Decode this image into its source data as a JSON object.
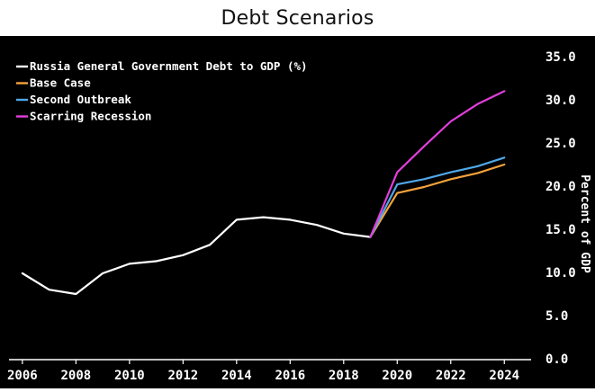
{
  "page": {
    "title": "Debt Scenarios"
  },
  "chart_data": {
    "type": "line",
    "title": "Debt Scenarios",
    "xlabel": "",
    "ylabel": "Percent of GDP",
    "xlim": [
      2005.5,
      2025
    ],
    "ylim": [
      0,
      35
    ],
    "xticks": [
      2006,
      2008,
      2010,
      2012,
      2014,
      2016,
      2018,
      2020,
      2022,
      2024
    ],
    "yticks": [
      0,
      5,
      10,
      15,
      20,
      25,
      30,
      35
    ],
    "ytick_labels": [
      "0.0",
      "5.0",
      "10.0",
      "15.0",
      "20.0",
      "25.0",
      "30.0",
      "35.0"
    ],
    "grid": false,
    "y_axis_side": "right",
    "legend_position": "top-left",
    "background": "#000000",
    "series": [
      {
        "name": "Russia General Government Debt to GDP (%)",
        "color": "#ffffff",
        "x": [
          2006,
          2007,
          2008,
          2009,
          2010,
          2011,
          2012,
          2013,
          2014,
          2015,
          2016,
          2017,
          2018,
          2019
        ],
        "y": [
          9.9,
          8.0,
          7.5,
          9.9,
          11.0,
          11.3,
          12.0,
          13.2,
          16.1,
          16.4,
          16.1,
          15.5,
          14.5,
          14.1
        ]
      },
      {
        "name": "Base Case",
        "color": "#f5a23c",
        "x": [
          2019,
          2020,
          2021,
          2022,
          2023,
          2024
        ],
        "y": [
          14.1,
          19.2,
          19.9,
          20.8,
          21.5,
          22.5
        ]
      },
      {
        "name": "Second Outbreak",
        "color": "#4fa8e8",
        "x": [
          2019,
          2020,
          2021,
          2022,
          2023,
          2024
        ],
        "y": [
          14.1,
          20.2,
          20.8,
          21.6,
          22.3,
          23.3
        ]
      },
      {
        "name": "Scarring Recession",
        "color": "#e13fdc",
        "x": [
          2019,
          2020,
          2021,
          2022,
          2023,
          2024
        ],
        "y": [
          14.1,
          21.6,
          24.6,
          27.5,
          29.5,
          31.0
        ]
      }
    ]
  }
}
